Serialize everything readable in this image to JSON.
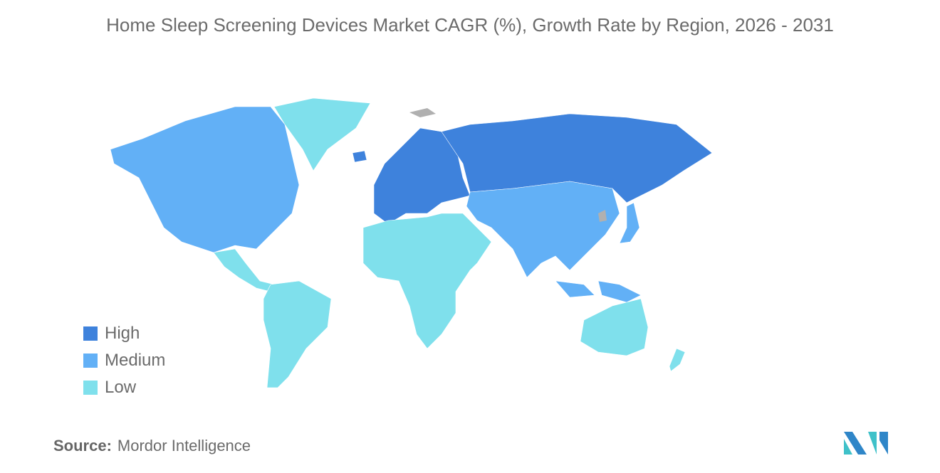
{
  "title": "Home Sleep Screening Devices Market CAGR (%), Growth Rate by Region, 2026 - 2031",
  "legend": [
    {
      "label": "High",
      "color": "#3e82dc"
    },
    {
      "label": "Medium",
      "color": "#62b0f6"
    },
    {
      "label": "Low",
      "color": "#7fe0ec"
    }
  ],
  "regions": [
    {
      "name": "North America",
      "level": "Medium"
    },
    {
      "name": "Greenland",
      "level": "Low"
    },
    {
      "name": "Central America",
      "level": "Low"
    },
    {
      "name": "South America",
      "level": "Low"
    },
    {
      "name": "Europe",
      "level": "High"
    },
    {
      "name": "Russia",
      "level": "High"
    },
    {
      "name": "Asia",
      "level": "Medium"
    },
    {
      "name": "Japan",
      "level": "Medium"
    },
    {
      "name": "Southeast Asia",
      "level": "Medium"
    },
    {
      "name": "Middle East and Africa",
      "level": "Low"
    },
    {
      "name": "Australia",
      "level": "Low"
    },
    {
      "name": "New Zealand",
      "level": "Low"
    }
  ],
  "no_data_color": "#b0b0b0",
  "source": {
    "label": "Source:",
    "value": "Mordor Intelligence"
  }
}
